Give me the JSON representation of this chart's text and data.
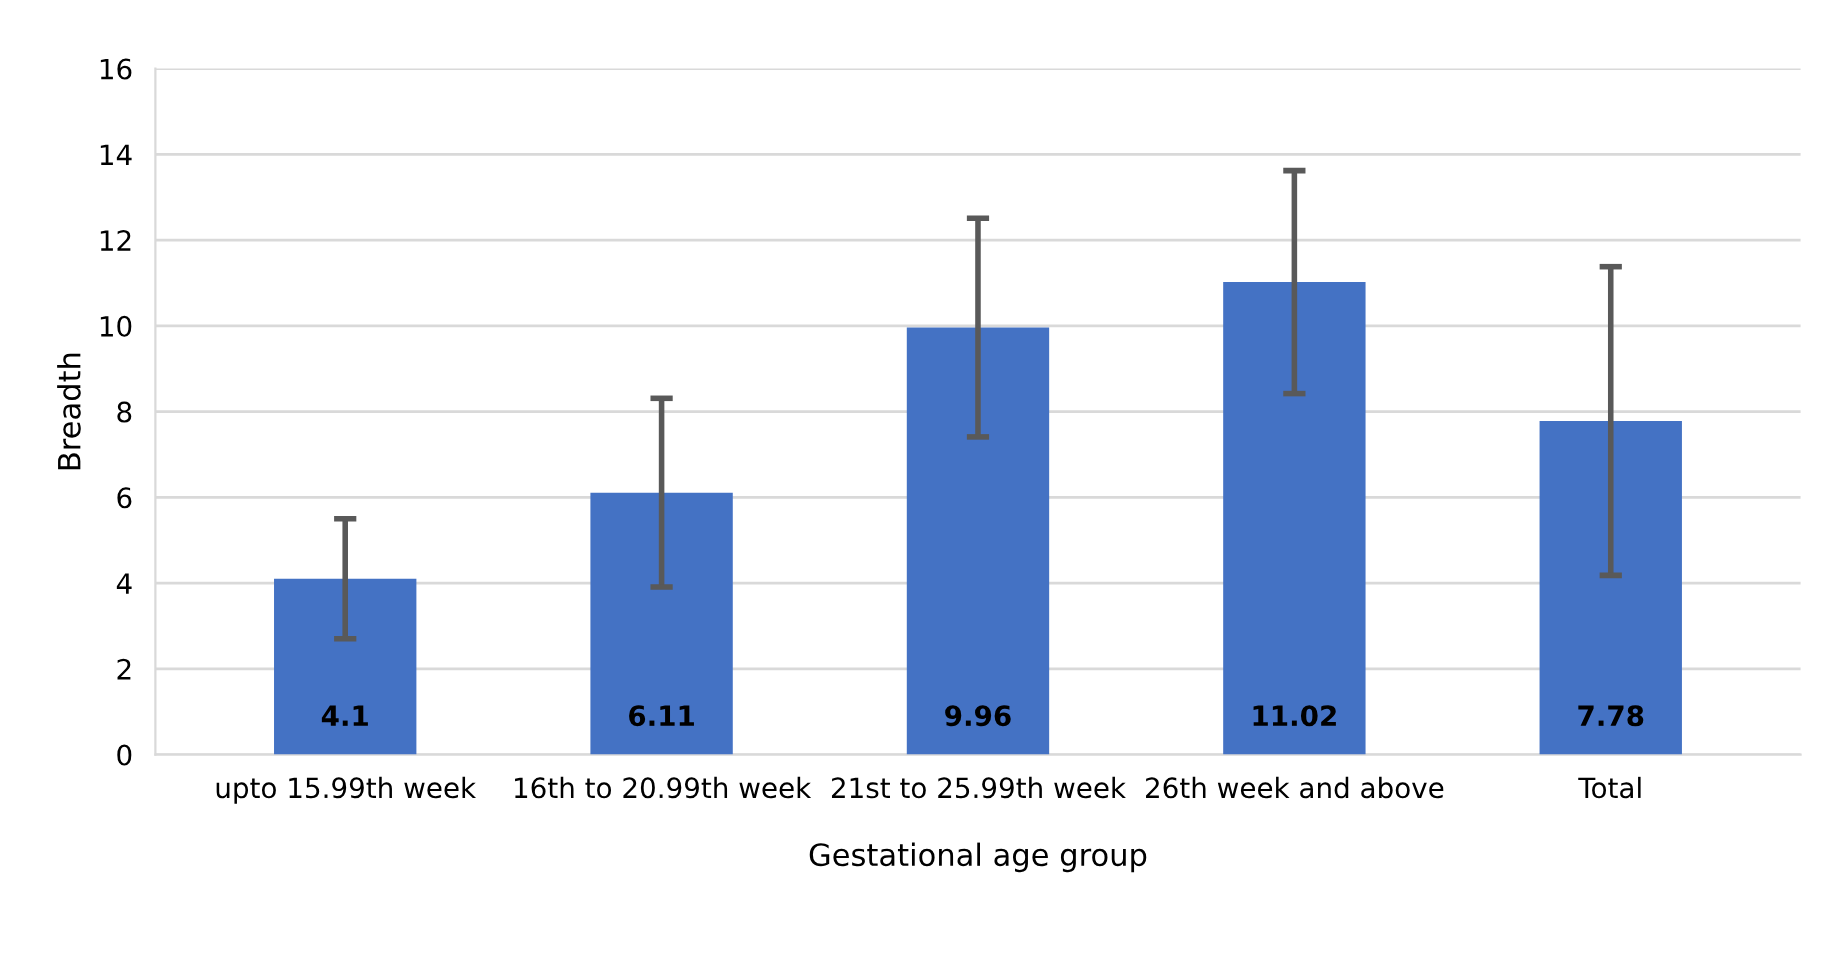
{
  "chart_data": {
    "type": "bar",
    "xlabel": "Gestational age group",
    "ylabel": "Breadth",
    "categories": [
      "upto 15.99th week",
      "16th to 20.99th week",
      "21st to 25.99th week",
      "26th week and above",
      "Total"
    ],
    "values": [
      4.1,
      6.11,
      9.96,
      11.02,
      7.78
    ],
    "errors": [
      1.4,
      2.2,
      2.55,
      2.6,
      3.6
    ],
    "color": "#4472c4",
    "ylim": [
      0,
      16
    ],
    "yticks": [
      0,
      2,
      4,
      6,
      8,
      10,
      12,
      14,
      16
    ],
    "grid": "y",
    "data_labels": true
  }
}
